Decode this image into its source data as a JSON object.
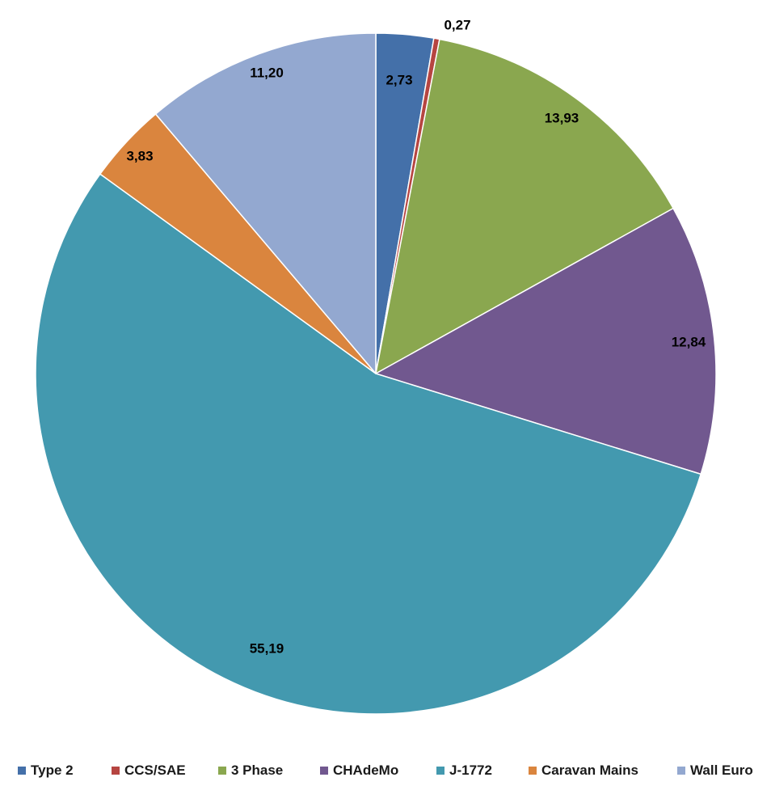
{
  "chart_data": {
    "type": "pie",
    "title": "",
    "start_angle_deg": 0,
    "direction": "clockwise",
    "legend_position": "bottom",
    "value_labels_shown": true,
    "slices": [
      {
        "name": "Type 2",
        "value": 2.73,
        "label": "2,73",
        "color": "#4470a9"
      },
      {
        "name": "CCS/SAE",
        "value": 0.27,
        "label": "0,27",
        "color": "#b64541"
      },
      {
        "name": "3 Phase",
        "value": 13.93,
        "label": "13,93",
        "color": "#8aa74f"
      },
      {
        "name": "CHAdeMo",
        "value": 12.84,
        "label": "12,84",
        "color": "#71588f"
      },
      {
        "name": "J-1772",
        "value": 55.19,
        "label": "55,19",
        "color": "#4399af"
      },
      {
        "name": "Caravan Mains",
        "value": 3.83,
        "label": "3,83",
        "color": "#da853e"
      },
      {
        "name": "Wall Euro",
        "value": 11.2,
        "label": "11,20",
        "color": "#93a8d0"
      }
    ]
  }
}
